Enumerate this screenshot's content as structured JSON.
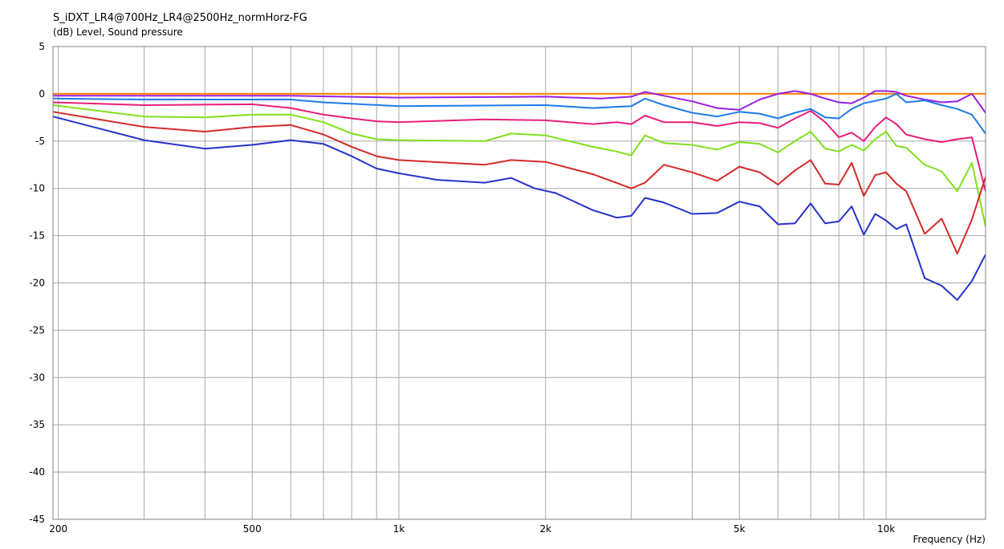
{
  "chart_data": {
    "type": "line",
    "title": "S_iDXT_LR4@700Hz_LR4@2500Hz_normHorz-FG",
    "ylabel": "(dB)  Level, Sound pressure",
    "xlabel": "Frequency  (Hz)",
    "x_scale": "log",
    "xlim": [
      195,
      16000
    ],
    "ylim": [
      -45,
      5
    ],
    "grid": true,
    "y_ticks": [
      5,
      0,
      -5,
      -10,
      -15,
      -20,
      -25,
      -30,
      -35,
      -40,
      -45
    ],
    "x_tick_labels": [
      {
        "value": 200,
        "label": "200"
      },
      {
        "value": 500,
        "label": "500"
      },
      {
        "value": 1000,
        "label": "1k"
      },
      {
        "value": 2000,
        "label": "2k"
      },
      {
        "value": 5000,
        "label": "5k"
      },
      {
        "value": 10000,
        "label": "10k"
      }
    ],
    "x_grid": [
      200,
      300,
      400,
      500,
      600,
      700,
      800,
      900,
      1000,
      2000,
      3000,
      4000,
      5000,
      6000,
      7000,
      8000,
      9000,
      10000,
      20000
    ],
    "series": [
      {
        "color": "#ff8000",
        "x": [
          195,
          1000,
          5000,
          10000,
          16000
        ],
        "y": [
          0,
          0,
          0,
          0,
          0
        ]
      },
      {
        "color": "#9a1fe0",
        "x": [
          195,
          300,
          600,
          1000,
          2000,
          2600,
          3000,
          3200,
          3500,
          4000,
          4500,
          5000,
          5500,
          6000,
          6500,
          7000,
          7500,
          8000,
          8500,
          9000,
          9500,
          10000,
          10500,
          11000,
          12000,
          13000,
          14000,
          15000,
          16000
        ],
        "y": [
          -0.2,
          -0.2,
          -0.2,
          -0.4,
          -0.3,
          -0.5,
          -0.3,
          0.2,
          -0.2,
          -0.8,
          -1.5,
          -1.7,
          -0.6,
          0.0,
          0.3,
          0.0,
          -0.5,
          -0.9,
          -1.0,
          -0.4,
          0.3,
          0.3,
          0.2,
          -0.2,
          -0.6,
          -0.9,
          -0.8,
          0.0,
          -2.0
        ]
      },
      {
        "color": "#1e7be8",
        "x": [
          195,
          300,
          600,
          700,
          1000,
          2000,
          2500,
          3000,
          3200,
          3500,
          4000,
          4500,
          5000,
          5500,
          6000,
          6500,
          7000,
          7500,
          8000,
          8500,
          9000,
          10000,
          10500,
          11000,
          12000,
          13000,
          14000,
          15000,
          16000
        ],
        "y": [
          -0.5,
          -0.6,
          -0.6,
          -0.9,
          -1.3,
          -1.2,
          -1.5,
          -1.3,
          -0.5,
          -1.2,
          -2.0,
          -2.4,
          -1.9,
          -2.1,
          -2.6,
          -2.0,
          -1.6,
          -2.5,
          -2.6,
          -1.6,
          -1.0,
          -0.5,
          0.0,
          -0.9,
          -0.7,
          -1.2,
          -1.6,
          -2.2,
          -4.2
        ]
      },
      {
        "color": "#e81e7c",
        "x": [
          195,
          300,
          500,
          600,
          700,
          800,
          900,
          1000,
          1500,
          2000,
          2500,
          2800,
          3000,
          3200,
          3500,
          4000,
          4500,
          5000,
          5500,
          6000,
          6500,
          7000,
          7500,
          8000,
          8500,
          9000,
          9500,
          10000,
          10500,
          11000,
          12000,
          13000,
          14000,
          15000,
          16000
        ],
        "y": [
          -0.9,
          -1.2,
          -1.1,
          -1.5,
          -2.2,
          -2.6,
          -2.9,
          -3.0,
          -2.7,
          -2.8,
          -3.2,
          -3.0,
          -3.2,
          -2.3,
          -3.0,
          -3.0,
          -3.4,
          -3.0,
          -3.1,
          -3.6,
          -2.6,
          -1.8,
          -3.0,
          -4.6,
          -4.1,
          -5.0,
          -3.5,
          -2.5,
          -3.2,
          -4.3,
          -4.8,
          -5.1,
          -4.8,
          -4.6,
          -10.3
        ]
      },
      {
        "color": "#80e01c",
        "x": [
          195,
          300,
          400,
          500,
          600,
          700,
          800,
          900,
          1000,
          1500,
          1700,
          2000,
          2500,
          2800,
          3000,
          3200,
          3500,
          4000,
          4500,
          5000,
          5500,
          6000,
          6500,
          7000,
          7500,
          8000,
          8500,
          9000,
          9500,
          10000,
          10500,
          11000,
          12000,
          13000,
          14000,
          15000,
          16000
        ],
        "y": [
          -1.2,
          -2.4,
          -2.5,
          -2.2,
          -2.2,
          -3.0,
          -4.2,
          -4.8,
          -4.9,
          -5.0,
          -4.2,
          -4.4,
          -5.6,
          -6.1,
          -6.5,
          -4.4,
          -5.2,
          -5.4,
          -5.9,
          -5.1,
          -5.3,
          -6.2,
          -5.0,
          -4.0,
          -5.8,
          -6.1,
          -5.4,
          -6.0,
          -4.8,
          -4.0,
          -5.5,
          -5.7,
          -7.5,
          -8.2,
          -10.3,
          -7.3,
          -14.0
        ]
      },
      {
        "color": "#d42a2a",
        "x": [
          195,
          300,
          400,
          500,
          600,
          700,
          800,
          900,
          1000,
          1500,
          1700,
          2000,
          2500,
          3000,
          3200,
          3500,
          4000,
          4500,
          5000,
          5500,
          6000,
          6500,
          7000,
          7500,
          8000,
          8500,
          9000,
          9500,
          10000,
          10500,
          11000,
          12000,
          13000,
          14000,
          15000,
          16000
        ],
        "y": [
          -1.9,
          -3.5,
          -4.0,
          -3.5,
          -3.3,
          -4.3,
          -5.6,
          -6.6,
          -7.0,
          -7.5,
          -7.0,
          -7.2,
          -8.5,
          -10.0,
          -9.4,
          -7.5,
          -8.3,
          -9.2,
          -7.7,
          -8.3,
          -9.6,
          -8.1,
          -7.0,
          -9.5,
          -9.6,
          -7.3,
          -10.8,
          -8.6,
          -8.3,
          -9.5,
          -10.3,
          -14.8,
          -13.2,
          -16.9,
          -13.3,
          -8.8
        ]
      },
      {
        "color": "#2632c8",
        "x": [
          195,
          300,
          400,
          500,
          600,
          700,
          800,
          900,
          1000,
          1200,
          1500,
          1700,
          1900,
          2100,
          2500,
          2800,
          3000,
          3200,
          3500,
          4000,
          4500,
          5000,
          5500,
          6000,
          6500,
          7000,
          7500,
          8000,
          8500,
          9000,
          9500,
          10000,
          10500,
          11000,
          12000,
          13000,
          14000,
          15000,
          16000
        ],
        "y": [
          -2.4,
          -4.9,
          -5.8,
          -5.4,
          -4.9,
          -5.3,
          -6.6,
          -7.9,
          -8.4,
          -9.1,
          -9.4,
          -8.9,
          -10.0,
          -10.5,
          -12.3,
          -13.1,
          -12.9,
          -11.0,
          -11.5,
          -12.7,
          -12.6,
          -11.4,
          -11.9,
          -13.8,
          -13.7,
          -11.6,
          -13.7,
          -13.5,
          -11.9,
          -14.9,
          -12.7,
          -13.4,
          -14.3,
          -13.8,
          -19.5,
          -20.3,
          -21.8,
          -19.8,
          -17.0
        ]
      }
    ]
  }
}
